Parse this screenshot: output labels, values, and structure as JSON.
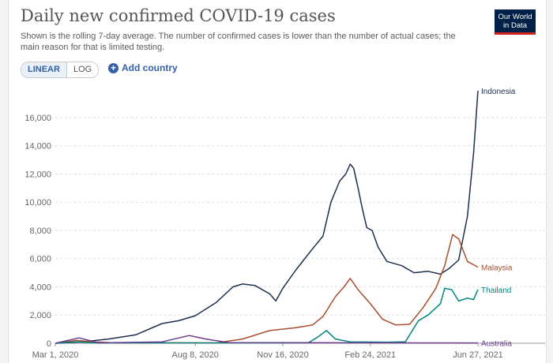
{
  "header": {
    "title": "Daily new confirmed COVID-19 cases",
    "subtitle": "Shown is the rolling 7-day average. The number of confirmed cases is lower than the number of actual cases; the main reason for that is limited testing.",
    "logo_line1": "Our World",
    "logo_line2": "in Data"
  },
  "controls": {
    "linear_label": "LINEAR",
    "log_label": "LOG",
    "add_country_label": "Add country"
  },
  "colors": {
    "Indonesia": "#1d2f4e",
    "Malaysia": "#a8502e",
    "Thailand": "#00847e",
    "Australia": "#6b3d8e",
    "accent": "#3360a9",
    "logo_bg": "#002147",
    "logo_accent": "#ce261e"
  },
  "chart_data": {
    "type": "line",
    "title": "Daily new confirmed COVID-19 cases",
    "x_ticks": [
      "Mar 1, 2020",
      "Aug 8, 2020",
      "Nov 16, 2020",
      "Feb 24, 2021",
      "Jun 27, 2021"
    ],
    "y_ticks": [
      "0",
      "2,000",
      "4,000",
      "6,000",
      "8,000",
      "10,000",
      "12,000",
      "14,000",
      "16,000"
    ],
    "ylim": [
      0,
      17900
    ],
    "xlim": [
      "2020-03-01",
      "2021-06-27"
    ],
    "grid": "horizontal dashed",
    "series": [
      {
        "name": "Indonesia",
        "label_value": 17900,
        "points": [
          [
            "2020-03-01",
            0
          ],
          [
            "2020-04-01",
            100
          ],
          [
            "2020-05-01",
            300
          ],
          [
            "2020-06-01",
            600
          ],
          [
            "2020-07-01",
            1400
          ],
          [
            "2020-07-20",
            1600
          ],
          [
            "2020-08-08",
            1950
          ],
          [
            "2020-09-01",
            2900
          ],
          [
            "2020-09-20",
            4000
          ],
          [
            "2020-10-01",
            4200
          ],
          [
            "2020-10-15",
            4100
          ],
          [
            "2020-11-01",
            3500
          ],
          [
            "2020-11-08",
            3000
          ],
          [
            "2020-11-16",
            3900
          ],
          [
            "2020-12-01",
            5200
          ],
          [
            "2020-12-20",
            6700
          ],
          [
            "2021-01-01",
            7600
          ],
          [
            "2021-01-10",
            10000
          ],
          [
            "2021-01-20",
            11500
          ],
          [
            "2021-01-27",
            12000
          ],
          [
            "2021-02-01",
            12700
          ],
          [
            "2021-02-05",
            12400
          ],
          [
            "2021-02-10",
            11000
          ],
          [
            "2021-02-15",
            9500
          ],
          [
            "2021-02-20",
            8200
          ],
          [
            "2021-02-26",
            8000
          ],
          [
            "2021-03-05",
            6800
          ],
          [
            "2021-03-15",
            5800
          ],
          [
            "2021-04-01",
            5500
          ],
          [
            "2021-04-15",
            5000
          ],
          [
            "2021-05-01",
            5100
          ],
          [
            "2021-05-15",
            4900
          ],
          [
            "2021-05-25",
            5300
          ],
          [
            "2021-06-05",
            5900
          ],
          [
            "2021-06-15",
            9000
          ],
          [
            "2021-06-22",
            13500
          ],
          [
            "2021-06-27",
            17900
          ]
        ]
      },
      {
        "name": "Malaysia",
        "label_value": 5400,
        "points": [
          [
            "2020-03-01",
            0
          ],
          [
            "2020-03-25",
            200
          ],
          [
            "2020-04-15",
            100
          ],
          [
            "2020-05-01",
            50
          ],
          [
            "2020-09-01",
            30
          ],
          [
            "2020-10-01",
            300
          ],
          [
            "2020-11-01",
            900
          ],
          [
            "2020-12-01",
            1100
          ],
          [
            "2020-12-20",
            1300
          ],
          [
            "2021-01-01",
            1900
          ],
          [
            "2021-01-15",
            3300
          ],
          [
            "2021-01-25",
            4000
          ],
          [
            "2021-02-01",
            4600
          ],
          [
            "2021-02-10",
            3800
          ],
          [
            "2021-02-24",
            2800
          ],
          [
            "2021-03-10",
            1700
          ],
          [
            "2021-03-25",
            1300
          ],
          [
            "2021-04-10",
            1350
          ],
          [
            "2021-04-25",
            2500
          ],
          [
            "2021-05-10",
            3900
          ],
          [
            "2021-05-20",
            5500
          ],
          [
            "2021-05-29",
            7700
          ],
          [
            "2021-06-05",
            7400
          ],
          [
            "2021-06-15",
            5800
          ],
          [
            "2021-06-27",
            5400
          ]
        ]
      },
      {
        "name": "Thailand",
        "label_value": 3800,
        "points": [
          [
            "2020-03-01",
            0
          ],
          [
            "2020-03-25",
            100
          ],
          [
            "2020-04-15",
            30
          ],
          [
            "2020-12-15",
            30
          ],
          [
            "2020-12-25",
            400
          ],
          [
            "2021-01-05",
            900
          ],
          [
            "2021-01-15",
            300
          ],
          [
            "2021-02-01",
            100
          ],
          [
            "2021-03-15",
            80
          ],
          [
            "2021-04-05",
            100
          ],
          [
            "2021-04-20",
            1600
          ],
          [
            "2021-05-01",
            2000
          ],
          [
            "2021-05-15",
            2800
          ],
          [
            "2021-05-20",
            3900
          ],
          [
            "2021-05-28",
            3800
          ],
          [
            "2021-06-05",
            3000
          ],
          [
            "2021-06-15",
            3200
          ],
          [
            "2021-06-22",
            3100
          ],
          [
            "2021-06-27",
            3800
          ]
        ]
      },
      {
        "name": "Australia",
        "label_value": 20,
        "points": [
          [
            "2020-03-01",
            0
          ],
          [
            "2020-03-28",
            380
          ],
          [
            "2020-04-20",
            30
          ],
          [
            "2020-07-01",
            100
          ],
          [
            "2020-08-01",
            550
          ],
          [
            "2020-08-20",
            300
          ],
          [
            "2020-09-15",
            50
          ],
          [
            "2021-06-27",
            20
          ]
        ]
      }
    ]
  }
}
